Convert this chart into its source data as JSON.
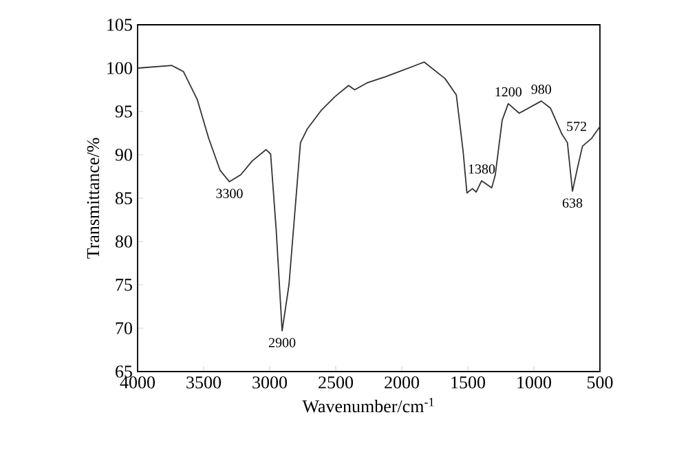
{
  "chart_data": {
    "type": "line",
    "xlabel": "Wavenumber/cm$^{-1}$",
    "ylabel": "Transmittance/%",
    "xlim": [
      4000,
      500
    ],
    "ylim": [
      65,
      105
    ],
    "xticks": [
      4000,
      3500,
      3000,
      2500,
      2000,
      1500,
      1000,
      500
    ],
    "yticks": [
      65,
      70,
      75,
      80,
      85,
      90,
      95,
      100,
      105
    ],
    "marker": "none",
    "line_style": "solid",
    "series": [
      {
        "color": "#333333",
        "x": [
          4000,
          3740,
          3653,
          3549,
          3462,
          3375,
          3305,
          3219,
          3132,
          3028,
          2993,
          2951,
          2906,
          2854,
          2767,
          2715,
          2611,
          2507,
          2403,
          2357,
          2263,
          2125,
          2021,
          1882,
          1830,
          1673,
          1587,
          1535,
          1507,
          1465,
          1437,
          1396,
          1319,
          1292,
          1240,
          1194,
          1111,
          944,
          875,
          788,
          746,
          708,
          667,
          632,
          563,
          503
        ],
        "values": [
          100,
          100.3,
          99.6,
          96.4,
          91.9,
          88.2,
          86.9,
          87.7,
          89.3,
          90.6,
          90.1,
          81.4,
          69.7,
          75.0,
          91.4,
          93.0,
          95.1,
          96.7,
          98.0,
          97.5,
          98.3,
          99.0,
          99.6,
          100.4,
          100.7,
          98.8,
          96.9,
          90.3,
          85.6,
          86.1,
          85.7,
          87.0,
          86.2,
          87.7,
          94.0,
          95.9,
          94.8,
          96.2,
          95.4,
          92.4,
          91.4,
          85.8,
          88.7,
          91.0,
          91.9,
          93.2
        ]
      }
    ],
    "annotations": [
      {
        "text": "3300",
        "x": 3305,
        "y": 86.9
      },
      {
        "text": "2900",
        "x": 2906,
        "y": 69.7
      },
      {
        "text": "1200",
        "x": 1194,
        "y": 95.9
      },
      {
        "text": "1380",
        "x": 1396,
        "y": 87.0
      },
      {
        "text": "980",
        "x": 944,
        "y": 96.2
      },
      {
        "text": "572",
        "x": 788,
        "y": 92.4
      },
      {
        "text": "638",
        "x": 708,
        "y": 85.8
      }
    ]
  }
}
